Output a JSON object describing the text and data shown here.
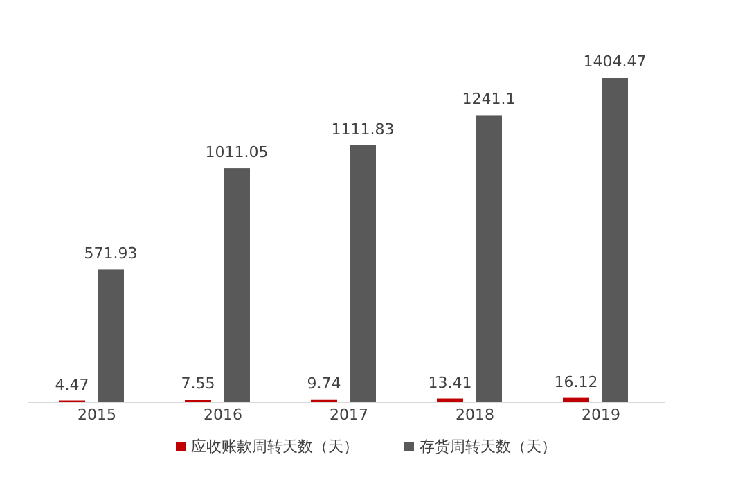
{
  "chart_data": {
    "type": "bar",
    "categories": [
      "2015",
      "2016",
      "2017",
      "2018",
      "2019"
    ],
    "series": [
      {
        "name": "应收账款周转天数（天）",
        "color": "#c00000",
        "values": [
          4.47,
          7.55,
          9.74,
          13.41,
          16.12
        ]
      },
      {
        "name": "存货周转天数（天）",
        "color": "#595959",
        "values": [
          571.93,
          1011.05,
          1111.83,
          1241.1,
          1404.47
        ]
      }
    ],
    "data_labels": true,
    "legend": "bottom"
  }
}
